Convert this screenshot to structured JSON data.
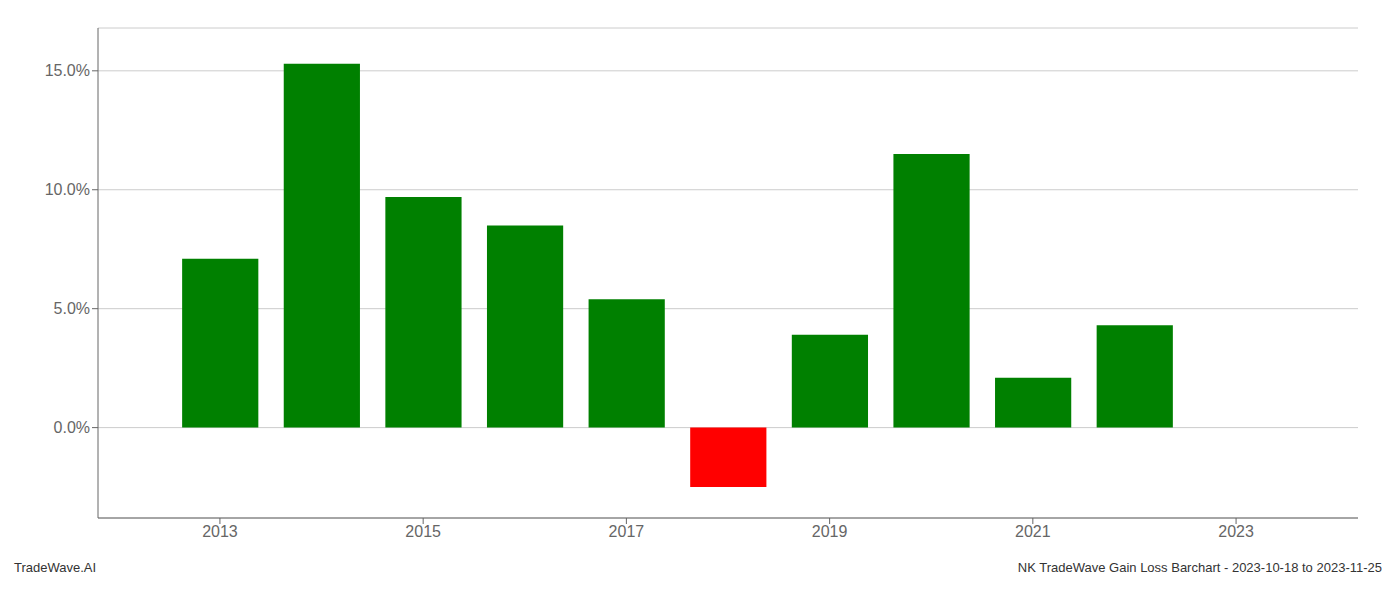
{
  "chart_data": {
    "type": "bar",
    "x": [
      2013,
      2014,
      2015,
      2016,
      2017,
      2018,
      2019,
      2020,
      2021,
      2022
    ],
    "values": [
      0.071,
      0.153,
      0.097,
      0.085,
      0.054,
      -0.025,
      0.039,
      0.115,
      0.021,
      0.043
    ],
    "colors": [
      "#008000",
      "#008000",
      "#008000",
      "#008000",
      "#008000",
      "#ff0000",
      "#008000",
      "#008000",
      "#008000",
      "#008000"
    ],
    "xlim": [
      2011.8,
      2024.2
    ],
    "xticks": [
      2013,
      2015,
      2017,
      2019,
      2021,
      2023
    ],
    "ylim": [
      -0.038,
      0.168
    ],
    "yticks": [
      {
        "value": 0.0,
        "label": "0.0%"
      },
      {
        "value": 0.05,
        "label": "5.0%"
      },
      {
        "value": 0.1,
        "label": "10.0%"
      },
      {
        "value": 0.15,
        "label": "15.0%"
      }
    ],
    "grid": true,
    "annotations": [
      "TradeWave.AI",
      "NK TradeWave Gain Loss Barchart - 2023-10-18 to 2023-11-25"
    ]
  }
}
